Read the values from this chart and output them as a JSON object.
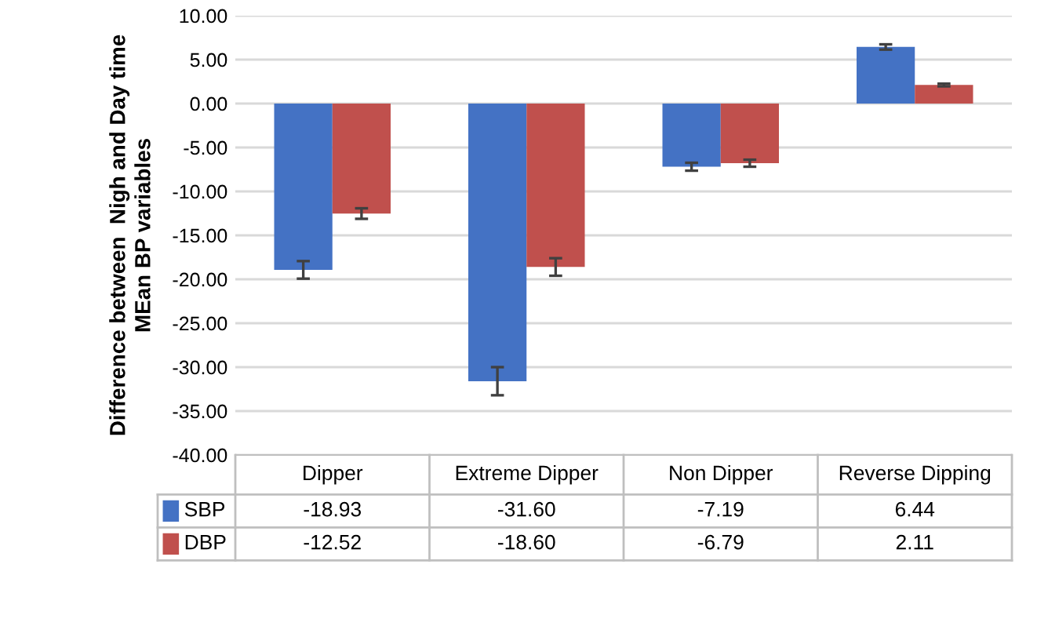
{
  "chart_data": {
    "type": "bar",
    "ylabel": "Difference between  Nigh and Day time\nMEan BP variables",
    "categories": [
      "Dipper",
      "Extreme Dipper",
      "Non Dipper",
      "Reverse Dipping"
    ],
    "series": [
      {
        "name": "SBP",
        "color": "#4472c4",
        "values": [
          -18.93,
          -31.6,
          -7.19,
          6.44
        ],
        "errors": [
          1.0,
          1.6,
          0.45,
          0.3
        ],
        "value_labels": [
          "-18.93",
          "-31.60",
          "-7.19",
          "6.44"
        ]
      },
      {
        "name": "DBP",
        "color": "#c0504d",
        "values": [
          -12.52,
          -18.6,
          -6.79,
          2.11
        ],
        "errors": [
          0.6,
          1.0,
          0.4,
          0.15
        ],
        "value_labels": [
          "-12.52",
          "-18.60",
          "-6.79",
          "2.11"
        ]
      }
    ],
    "ylim": [
      -40,
      10
    ],
    "yticks": [
      {
        "value": -40,
        "label": "-40.00"
      },
      {
        "value": -35,
        "label": "-35.00"
      },
      {
        "value": -30,
        "label": "-30.00"
      },
      {
        "value": -25,
        "label": "-25.00"
      },
      {
        "value": -20,
        "label": "-20.00"
      },
      {
        "value": -15,
        "label": "-15.00"
      },
      {
        "value": -10,
        "label": "-10.00"
      },
      {
        "value": -5,
        "label": "-5.00"
      },
      {
        "value": 0,
        "label": "0.00"
      },
      {
        "value": 5,
        "label": "5.00"
      },
      {
        "value": 10,
        "label": "10.00"
      }
    ],
    "grid": "y",
    "legend": "bottom"
  }
}
